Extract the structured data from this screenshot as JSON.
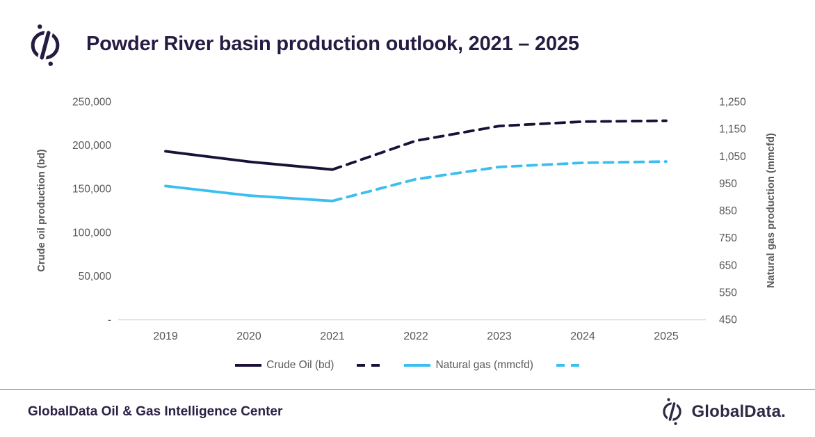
{
  "header": {
    "title": "Powder River basin production outlook, 2021 – 2025",
    "logo_icon": "globaldata-compass-mark"
  },
  "colors": {
    "accent_dark": "#261b42",
    "crude_line": "#1b1038",
    "gas_line": "#3bbef0",
    "axis_text": "#595959",
    "axis_line": "#d9d9d9",
    "divider": "#9a9a9a"
  },
  "chart_data": {
    "type": "line",
    "title": "Powder River basin production outlook, 2021 – 2025",
    "x": [
      2019,
      2020,
      2021,
      2022,
      2023,
      2024,
      2025
    ],
    "x_ticks": [
      "2019",
      "2020",
      "2021",
      "2022",
      "2023",
      "2024",
      "2025"
    ],
    "left_axis": {
      "label": "Crude oil production (bd)",
      "min": 0,
      "max": 250000,
      "ticks": [
        {
          "v": 250000,
          "label": "250,000"
        },
        {
          "v": 200000,
          "label": "200,000"
        },
        {
          "v": 150000,
          "label": "150,000"
        },
        {
          "v": 100000,
          "label": "100,000"
        },
        {
          "v": 50000,
          "label": "50,000"
        },
        {
          "v": 0,
          "label": "-"
        }
      ]
    },
    "right_axis": {
      "label": "Natural gas production (mmcfd)",
      "min": 450,
      "max": 1250,
      "ticks": [
        {
          "v": 1250,
          "label": "1,250"
        },
        {
          "v": 1150,
          "label": "1,150"
        },
        {
          "v": 1050,
          "label": "1,050"
        },
        {
          "v": 950,
          "label": "950"
        },
        {
          "v": 850,
          "label": "850"
        },
        {
          "v": 750,
          "label": "750"
        },
        {
          "v": 650,
          "label": "650"
        },
        {
          "v": 550,
          "label": "550"
        },
        {
          "v": 450,
          "label": "450"
        }
      ]
    },
    "series": [
      {
        "name": "Crude Oil (bd)",
        "axis": "left",
        "color": "#1b1038",
        "solid_through_index": 2,
        "values": [
          193000,
          181000,
          172000,
          205000,
          222000,
          227000,
          228000
        ]
      },
      {
        "name": "Natural gas (mmcfd)",
        "axis": "right",
        "color": "#3bbef0",
        "solid_through_index": 2,
        "values": [
          940,
          905,
          885,
          965,
          1010,
          1025,
          1030
        ]
      }
    ],
    "grid": false,
    "legend_position": "bottom"
  },
  "legend": {
    "items": [
      {
        "style": "solid",
        "color": "#1b1038",
        "label": "Crude Oil (bd)"
      },
      {
        "style": "dashed",
        "color": "#1b1038",
        "label": ""
      },
      {
        "style": "solid",
        "color": "#3bbef0",
        "label": "Natural gas (mmcfd)"
      },
      {
        "style": "dashed",
        "color": "#3bbef0",
        "label": ""
      }
    ]
  },
  "footer": {
    "text": "GlobalData Oil & Gas Intelligence Center",
    "brand": "GlobalData.",
    "logo_icon": "globaldata-compass-mark"
  }
}
